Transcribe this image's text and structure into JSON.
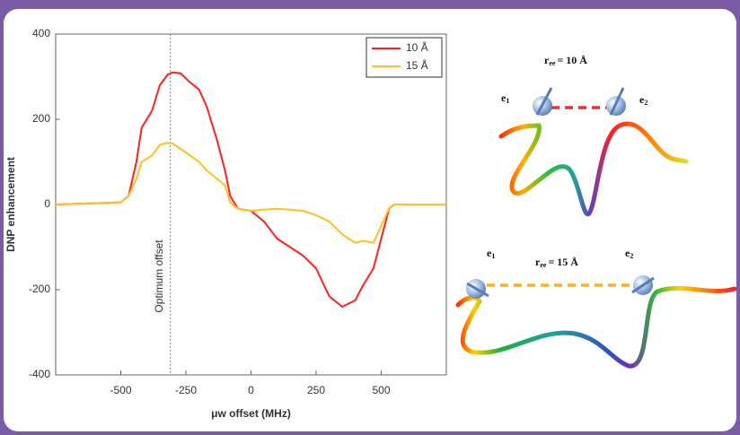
{
  "chart_data": {
    "type": "line",
    "x": [
      -750,
      -600,
      -500,
      -470,
      -440,
      -420,
      -380,
      -350,
      -320,
      -300,
      -270,
      -240,
      -200,
      -170,
      -130,
      -100,
      -80,
      -50,
      0,
      50,
      100,
      150,
      200,
      250,
      300,
      350,
      400,
      430,
      470,
      500,
      530,
      550,
      750
    ],
    "series": [
      {
        "name": "10 Å",
        "color": "#ff2020",
        "values": [
          0,
          3,
          5,
          20,
          100,
          180,
          220,
          280,
          305,
          310,
          308,
          290,
          270,
          230,
          150,
          80,
          20,
          -10,
          -15,
          -40,
          -80,
          -100,
          -120,
          -150,
          -215,
          -240,
          -225,
          -190,
          -150,
          -80,
          -10,
          0,
          0
        ]
      },
      {
        "name": "15 Å",
        "color": "#ffc020",
        "values": [
          0,
          3,
          5,
          20,
          60,
          100,
          115,
          140,
          145,
          143,
          130,
          118,
          100,
          80,
          60,
          45,
          5,
          -10,
          -15,
          -12,
          -10,
          -12,
          -15,
          -25,
          -40,
          -70,
          -90,
          -85,
          -90,
          -50,
          -10,
          0,
          0
        ]
      }
    ],
    "xlim": [
      -750,
      750
    ],
    "ylim": [
      -400,
      400
    ],
    "xticks": [
      -500,
      -250,
      0,
      250,
      500
    ],
    "yticks": [
      -400,
      -200,
      0,
      200,
      400
    ],
    "xlabel": "μw offset (MHz)",
    "ylabel": "DNP enhancement",
    "annotation": {
      "text": "Optimum offset",
      "x": -310
    },
    "legend": "upper right"
  },
  "diagrams": [
    {
      "symbol": "r",
      "subscript": "ee",
      "distance": "= 10 Å",
      "electrons": [
        {
          "symbol": "e",
          "subscript": "1"
        },
        {
          "symbol": "e",
          "subscript": "2"
        }
      ]
    },
    {
      "symbol": "r",
      "subscript": "ee",
      "distance": "= 15 Å",
      "electrons": [
        {
          "symbol": "e",
          "subscript": "1"
        },
        {
          "symbol": "e",
          "subscript": "2"
        }
      ]
    }
  ]
}
